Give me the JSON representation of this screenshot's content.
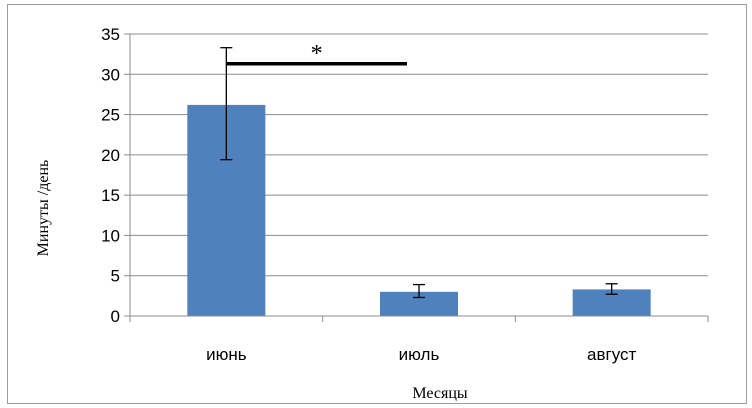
{
  "chart_data": {
    "type": "bar",
    "categories": [
      "июнь",
      "июль",
      "август"
    ],
    "values": [
      26.2,
      3.0,
      3.3
    ],
    "error_low": [
      19.4,
      2.3,
      2.7
    ],
    "error_high": [
      33.3,
      3.9,
      4.0
    ],
    "ylabel": "Минуты /день",
    "xlabel": "Месяцы",
    "ylim": [
      0,
      35
    ],
    "yticks": [
      0,
      5,
      10,
      15,
      20,
      25,
      30,
      35
    ],
    "grid": true,
    "bar_color": "#4f81bd",
    "annotation": {
      "text": "*",
      "span": [
        "июнь",
        "июль"
      ],
      "y": 31.3
    }
  }
}
